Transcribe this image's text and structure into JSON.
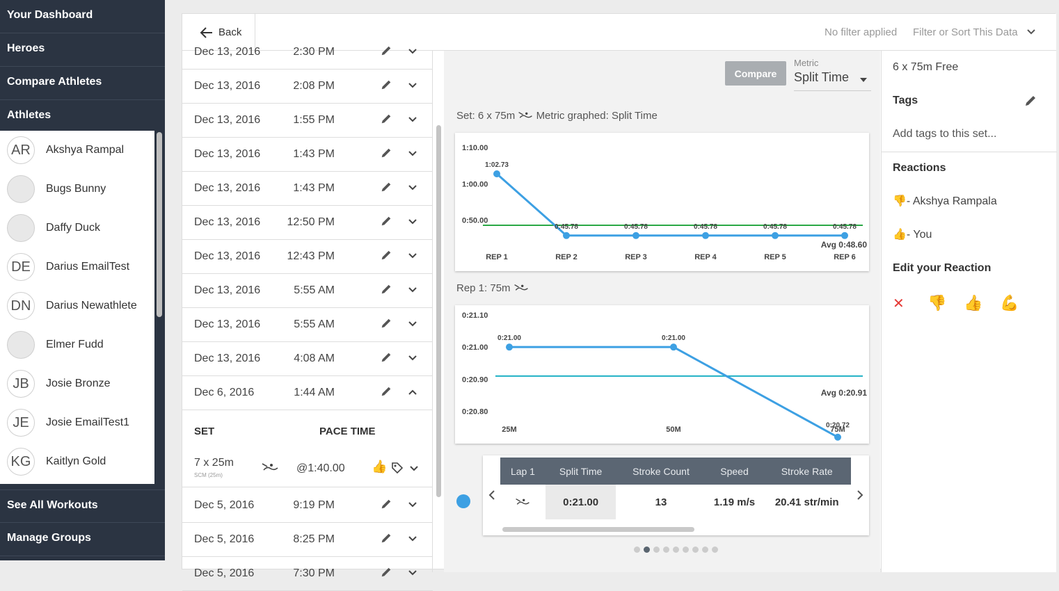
{
  "sidebar": {
    "nav_top": [
      "Your Dashboard",
      "Heroes",
      "Compare Athletes",
      "Athletes"
    ],
    "athletes": [
      {
        "initials": "AR",
        "name": "Akshya Rampal",
        "photo": false
      },
      {
        "initials": "",
        "name": "Bugs Bunny",
        "photo": true
      },
      {
        "initials": "",
        "name": "Daffy Duck",
        "photo": true
      },
      {
        "initials": "DE",
        "name": "Darius EmailTest",
        "photo": false
      },
      {
        "initials": "DN",
        "name": "Darius Newathlete",
        "photo": false
      },
      {
        "initials": "",
        "name": "Elmer Fudd",
        "photo": true
      },
      {
        "initials": "JB",
        "name": "Josie Bronze",
        "photo": false
      },
      {
        "initials": "JE",
        "name": "Josie EmailTest1",
        "photo": false
      },
      {
        "initials": "KG",
        "name": "Kaitlyn Gold",
        "photo": false
      }
    ],
    "nav_bottom": [
      "See All Workouts",
      "Manage Groups"
    ]
  },
  "topbar": {
    "back_label": "Back",
    "filter_status": "No filter applied",
    "filter_button": "Filter or Sort This Data"
  },
  "workouts": [
    {
      "date": "Dec 13, 2016",
      "time": "2:30 PM"
    },
    {
      "date": "Dec 13, 2016",
      "time": "2:08 PM"
    },
    {
      "date": "Dec 13, 2016",
      "time": "1:55 PM"
    },
    {
      "date": "Dec 13, 2016",
      "time": "1:43 PM"
    },
    {
      "date": "Dec 13, 2016",
      "time": "1:43 PM"
    },
    {
      "date": "Dec 13, 2016",
      "time": "12:50 PM"
    },
    {
      "date": "Dec 13, 2016",
      "time": "12:43 PM"
    },
    {
      "date": "Dec 13, 2016",
      "time": "5:55 AM"
    },
    {
      "date": "Dec 13, 2016",
      "time": "5:55 AM"
    },
    {
      "date": "Dec 13, 2016",
      "time": "4:08 AM"
    },
    {
      "date": "Dec 6, 2016",
      "time": "1:44 AM"
    }
  ],
  "expanded_workout": {
    "headers": {
      "set": "SET",
      "pace": "PACE TIME"
    },
    "set_name": "7 x 25m",
    "set_sub": "SCM (25m)",
    "pace": "@1:40.00"
  },
  "workouts_after": [
    {
      "date": "Dec 5, 2016",
      "time": "9:19 PM"
    },
    {
      "date": "Dec 5, 2016",
      "time": "8:25 PM"
    },
    {
      "date": "Dec 5, 2016",
      "time": "7:30 PM"
    }
  ],
  "metric": {
    "compare_label": "Compare",
    "label": "Metric",
    "value": "Split Time"
  },
  "set_caption": "Set: 6 x 75m",
  "set_caption_metric": "Metric graphed: Split Time",
  "rep_caption": "Rep 1: 75m",
  "chart_data": [
    {
      "type": "line",
      "categories": [
        "REP 1",
        "REP 2",
        "REP 3",
        "REP 4",
        "REP 5",
        "REP 6"
      ],
      "values": [
        62.73,
        45.78,
        45.78,
        45.78,
        45.78,
        45.78
      ],
      "value_labels": [
        "1:02.73",
        "0:45.78",
        "0:45.78",
        "0:45.78",
        "0:45.78",
        "0:45.78"
      ],
      "y_ticks": [
        {
          "v": 70,
          "label": "1:10.00"
        },
        {
          "v": 60,
          "label": "1:00.00"
        },
        {
          "v": 50,
          "label": "0:50.00"
        }
      ],
      "ylim": [
        36,
        74
      ],
      "average": 48.6,
      "average_label": "Avg 0:48.60",
      "line_color": "#3da0e3",
      "avg_color": "#2aa845"
    },
    {
      "type": "line",
      "categories": [
        "25M",
        "50M",
        "75M"
      ],
      "values": [
        21.0,
        21.0,
        20.72
      ],
      "value_labels": [
        "0:21.00",
        "0:21.00",
        "0:20.72"
      ],
      "y_ticks": [
        {
          "v": 21.1,
          "label": "0:21.10"
        },
        {
          "v": 21.0,
          "label": "0:21.00"
        },
        {
          "v": 20.9,
          "label": "0:20.90"
        },
        {
          "v": 20.8,
          "label": "0:20.80"
        }
      ],
      "ylim": [
        20.7,
        21.13
      ],
      "average": 20.91,
      "average_label": "Avg 0:20.91",
      "line_color": "#3da0e3",
      "avg_color": "#1fb0c4"
    }
  ],
  "lap_table": {
    "headers": [
      "Lap 1",
      "Split Time",
      "Stroke Count",
      "Speed",
      "Stroke Rate"
    ],
    "row": [
      "",
      "0:21.00",
      "13",
      "1.19 m/s",
      "20.41 str/min"
    ]
  },
  "dots": {
    "count": 9,
    "active": 1
  },
  "right_panel": {
    "set_title": "6 x 75m Free",
    "tags_title": "Tags",
    "tags_placeholder": "Add tags to this set...",
    "reactions_title": "Reactions",
    "reactions": [
      {
        "emoji": "👎",
        "who": "- Akshya Rampala"
      },
      {
        "emoji": "👍",
        "who": "- You"
      }
    ],
    "edit_title": "Edit your Reaction",
    "edit_options": [
      "✕",
      "👎",
      "👍",
      "💪"
    ]
  },
  "colors": {
    "sidebar": "#2b3442",
    "accent": "#3da0e3",
    "remove": "#e53935"
  }
}
